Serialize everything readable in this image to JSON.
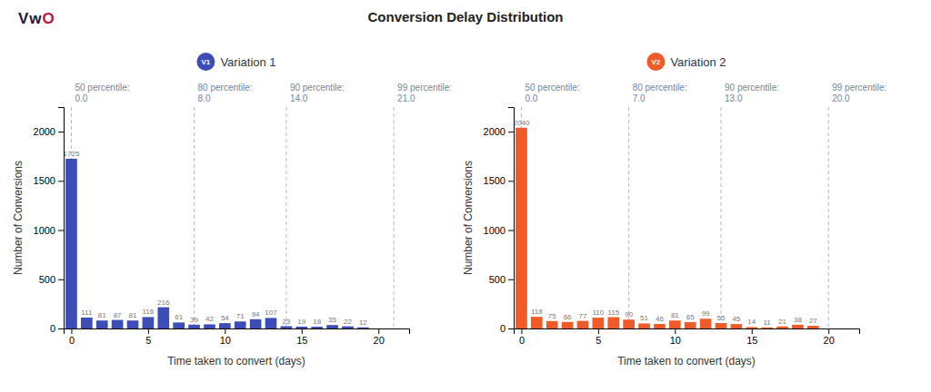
{
  "title": "Conversion Delay Distribution",
  "annotations": [
    {
      "text": "V",
      "color": "#1a1a3e"
    },
    {
      "text": "w",
      "color": "#1a1a3e"
    },
    {
      "text": "O",
      "color": "#c0143c"
    }
  ],
  "chart_data": [
    {
      "type": "bar",
      "xlabel": "Time taken to convert (days)",
      "ylabel": "Number of Conversions",
      "x": [
        0,
        1,
        2,
        3,
        4,
        5,
        6,
        7,
        8,
        9,
        10,
        11,
        12,
        13,
        14,
        15,
        16,
        17,
        18,
        19
      ],
      "series": [
        {
          "name": "Variation 1",
          "badge": "V1",
          "color": "#3d4db7",
          "values": [
            1725,
            111,
            81,
            87,
            81,
            116,
            216,
            61,
            39,
            42,
            54,
            71,
            94,
            107,
            23,
            19,
            18,
            35,
            22,
            12
          ]
        }
      ],
      "annotations": [
        {
          "x": 0.0,
          "text": "50 percentile:\n0.0"
        },
        {
          "x": 8.0,
          "text": "80 percentile:\n8.0"
        },
        {
          "x": 14.0,
          "text": "90 percentile:\n14.0"
        },
        {
          "x": 21.0,
          "text": "99 percentile:\n21.0"
        }
      ],
      "xlim": [
        -0.5,
        22
      ],
      "xticks": [
        0,
        5,
        10,
        15,
        20
      ],
      "ylim": [
        0,
        2250
      ],
      "yticks": [
        0,
        500,
        1000,
        1500,
        2000
      ],
      "grid": false,
      "legend": "top",
      "data_labels": true
    },
    {
      "type": "bar",
      "xlabel": "Time taken to convert (days)",
      "ylabel": "Number of Conversions",
      "x": [
        0,
        1,
        2,
        3,
        4,
        5,
        6,
        7,
        8,
        9,
        10,
        11,
        12,
        13,
        14,
        15,
        16,
        17,
        18,
        19
      ],
      "series": [
        {
          "name": "Variation 2",
          "badge": "V2",
          "color": "#f05a28",
          "values": [
            2040,
            118,
            75,
            66,
            77,
            110,
            115,
            90,
            51,
            46,
            81,
            65,
            99,
            55,
            45,
            14,
            11,
            21,
            38,
            27
          ]
        }
      ],
      "annotations": [
        {
          "x": 0.0,
          "text": "50 percentile:\n0.0"
        },
        {
          "x": 7.0,
          "text": "80 percentile:\n7.0"
        },
        {
          "x": 13.0,
          "text": "90 percentile:\n13.0"
        },
        {
          "x": 20.0,
          "text": "99 percentile:\n20.0"
        }
      ],
      "xlim": [
        -0.5,
        22
      ],
      "xticks": [
        0,
        5,
        10,
        15,
        20
      ],
      "ylim": [
        0,
        2250
      ],
      "yticks": [
        0,
        500,
        1000,
        1500,
        2000
      ],
      "grid": false,
      "legend": "top",
      "data_labels": true
    }
  ]
}
